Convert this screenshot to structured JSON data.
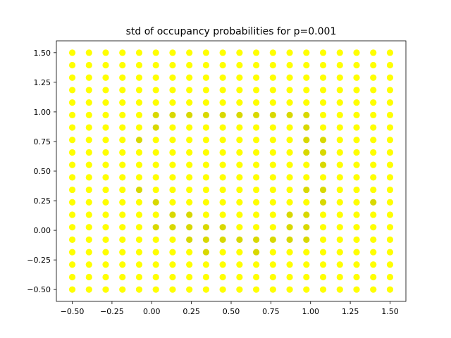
{
  "chart_data": {
    "type": "scatter",
    "title": "std of occupancy probabilities for p=0.001",
    "xlabel": "",
    "ylabel": "",
    "xlim": [
      -0.6,
      1.6
    ],
    "ylim": [
      -0.6,
      1.6
    ],
    "xticks": [
      -0.5,
      -0.25,
      0.0,
      0.25,
      0.5,
      0.75,
      1.0,
      1.25,
      1.5
    ],
    "yticks": [
      -0.5,
      -0.25,
      0.0,
      0.25,
      0.5,
      0.75,
      1.0,
      1.25,
      1.5
    ],
    "xtick_labels": [
      "−0.50",
      "−0.25",
      "0.00",
      "0.25",
      "0.50",
      "0.75",
      "1.00",
      "1.25",
      "1.50"
    ],
    "ytick_labels": [
      "−0.50",
      "−0.25",
      "0.00",
      "0.25",
      "0.50",
      "0.75",
      "1.00",
      "1.25",
      "1.50"
    ],
    "grid": {
      "x_start": -0.5,
      "x_end": 1.5,
      "x_count": 20,
      "y_start": -0.5,
      "y_end": 1.5,
      "y_count": 20
    },
    "colors": {
      "base": "#ffff00",
      "dim": "#d8d800",
      "point_default": "#ffff00",
      "axes": "#000000"
    },
    "dim_points": [
      [
        0.026,
        0.974
      ],
      [
        0.132,
        0.974
      ],
      [
        0.237,
        0.974
      ],
      [
        0.342,
        0.974
      ],
      [
        0.447,
        0.974
      ],
      [
        0.553,
        0.974
      ],
      [
        0.658,
        0.974
      ],
      [
        0.763,
        0.974
      ],
      [
        0.868,
        0.974
      ],
      [
        0.974,
        0.974
      ],
      [
        0.026,
        0.868
      ],
      [
        0.974,
        0.868
      ],
      [
        -0.079,
        0.763
      ],
      [
        0.974,
        0.763
      ],
      [
        1.079,
        0.763
      ],
      [
        0.974,
        0.658
      ],
      [
        1.079,
        0.658
      ],
      [
        1.079,
        0.553
      ],
      [
        -0.079,
        0.342
      ],
      [
        0.974,
        0.342
      ],
      [
        1.079,
        0.342
      ],
      [
        0.026,
        0.237
      ],
      [
        1.079,
        0.237
      ],
      [
        1.395,
        0.237
      ],
      [
        0.132,
        0.132
      ],
      [
        0.237,
        0.132
      ],
      [
        0.868,
        0.132
      ],
      [
        0.974,
        0.132
      ],
      [
        0.026,
        0.026
      ],
      [
        0.132,
        0.026
      ],
      [
        0.237,
        0.026
      ],
      [
        0.342,
        0.026
      ],
      [
        0.447,
        0.026
      ],
      [
        0.868,
        0.026
      ],
      [
        0.974,
        0.026
      ],
      [
        0.237,
        -0.079
      ],
      [
        0.342,
        -0.079
      ],
      [
        0.447,
        -0.079
      ],
      [
        0.553,
        -0.079
      ],
      [
        0.658,
        -0.079
      ],
      [
        0.763,
        -0.079
      ],
      [
        0.868,
        -0.079
      ],
      [
        0.974,
        -0.079
      ],
      [
        0.342,
        -0.184
      ],
      [
        0.658,
        -0.184
      ]
    ]
  }
}
